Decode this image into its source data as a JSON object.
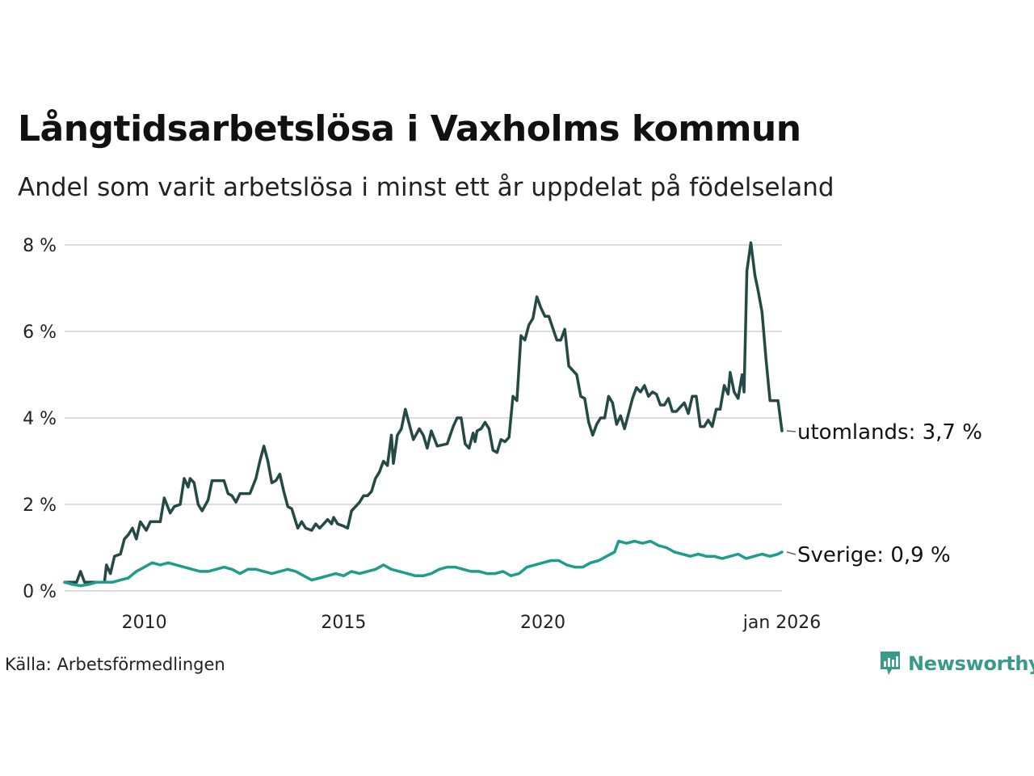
{
  "title": "Långtidsarbetslösa i Vaxholms kommun",
  "subtitle": "Andel som varit arbetslösa i minst ett år uppdelat på födelseland",
  "source": "Källa: Arbetsförmedlingen",
  "brand": "Newsworthy",
  "icons": {
    "brand": "newsworthy-logo-icon"
  },
  "colors": {
    "utomlands": "#254a45",
    "sverige": "#1e9c8c",
    "grid": "#dddddd",
    "brand": "#3a9a8a"
  },
  "chart_data": {
    "type": "line",
    "title": "Långtidsarbetslösa i Vaxholms kommun",
    "xlabel": "",
    "ylabel": "",
    "x_start": "2008-01",
    "x_end": "2026-01",
    "xlim": [
      2008.0,
      2026.0
    ],
    "ylim": [
      0,
      8
    ],
    "y_ticks": [
      0,
      2,
      4,
      6,
      8
    ],
    "y_tick_labels": [
      "0 %",
      "2 %",
      "4 %",
      "6 %",
      "8 %"
    ],
    "x_ticks": [
      2010,
      2015,
      2020,
      2026
    ],
    "x_tick_labels": [
      "2010",
      "2015",
      "2020",
      "jan 2026"
    ],
    "grid": true,
    "series": [
      {
        "name": "utomlands",
        "label": "utomlands: 3,7 %",
        "last_value": 3.7,
        "points": [
          [
            2008.0,
            0.2
          ],
          [
            2008.3,
            0.2
          ],
          [
            2008.4,
            0.45
          ],
          [
            2008.5,
            0.2
          ],
          [
            2009.0,
            0.2
          ],
          [
            2009.05,
            0.6
          ],
          [
            2009.15,
            0.4
          ],
          [
            2009.25,
            0.8
          ],
          [
            2009.4,
            0.85
          ],
          [
            2009.5,
            1.2
          ],
          [
            2009.6,
            1.3
          ],
          [
            2009.7,
            1.45
          ],
          [
            2009.8,
            1.2
          ],
          [
            2009.9,
            1.6
          ],
          [
            2010.05,
            1.4
          ],
          [
            2010.15,
            1.6
          ],
          [
            2010.4,
            1.6
          ],
          [
            2010.5,
            2.15
          ],
          [
            2010.65,
            1.8
          ],
          [
            2010.75,
            1.95
          ],
          [
            2010.9,
            2.0
          ],
          [
            2011.0,
            2.6
          ],
          [
            2011.1,
            2.4
          ],
          [
            2011.15,
            2.6
          ],
          [
            2011.25,
            2.5
          ],
          [
            2011.35,
            2.0
          ],
          [
            2011.45,
            1.85
          ],
          [
            2011.6,
            2.1
          ],
          [
            2011.7,
            2.55
          ],
          [
            2012.0,
            2.55
          ],
          [
            2012.1,
            2.25
          ],
          [
            2012.2,
            2.2
          ],
          [
            2012.3,
            2.05
          ],
          [
            2012.4,
            2.25
          ],
          [
            2012.55,
            2.25
          ],
          [
            2012.65,
            2.25
          ],
          [
            2012.8,
            2.6
          ],
          [
            2012.9,
            3.0
          ],
          [
            2013.0,
            3.35
          ],
          [
            2013.1,
            3.0
          ],
          [
            2013.2,
            2.5
          ],
          [
            2013.3,
            2.55
          ],
          [
            2013.4,
            2.7
          ],
          [
            2013.5,
            2.3
          ],
          [
            2013.6,
            1.95
          ],
          [
            2013.7,
            1.9
          ],
          [
            2013.8,
            1.6
          ],
          [
            2013.85,
            1.45
          ],
          [
            2013.95,
            1.6
          ],
          [
            2014.05,
            1.45
          ],
          [
            2014.2,
            1.4
          ],
          [
            2014.3,
            1.55
          ],
          [
            2014.4,
            1.45
          ],
          [
            2014.5,
            1.55
          ],
          [
            2014.6,
            1.65
          ],
          [
            2014.7,
            1.55
          ],
          [
            2014.75,
            1.7
          ],
          [
            2014.85,
            1.55
          ],
          [
            2015.0,
            1.5
          ],
          [
            2015.1,
            1.45
          ],
          [
            2015.2,
            1.85
          ],
          [
            2015.3,
            1.95
          ],
          [
            2015.4,
            2.05
          ],
          [
            2015.5,
            2.2
          ],
          [
            2015.6,
            2.2
          ],
          [
            2015.7,
            2.3
          ],
          [
            2015.8,
            2.6
          ],
          [
            2015.9,
            2.75
          ],
          [
            2016.0,
            3.0
          ],
          [
            2016.1,
            2.9
          ],
          [
            2016.2,
            3.6
          ],
          [
            2016.25,
            2.95
          ],
          [
            2016.35,
            3.6
          ],
          [
            2016.45,
            3.75
          ],
          [
            2016.55,
            4.2
          ],
          [
            2016.65,
            3.85
          ],
          [
            2016.75,
            3.5
          ],
          [
            2016.9,
            3.75
          ],
          [
            2017.0,
            3.6
          ],
          [
            2017.1,
            3.3
          ],
          [
            2017.2,
            3.7
          ],
          [
            2017.35,
            3.35
          ],
          [
            2017.6,
            3.4
          ],
          [
            2017.75,
            3.8
          ],
          [
            2017.85,
            4.0
          ],
          [
            2017.95,
            4.0
          ],
          [
            2018.05,
            3.4
          ],
          [
            2018.15,
            3.3
          ],
          [
            2018.25,
            3.65
          ],
          [
            2018.3,
            3.45
          ],
          [
            2018.35,
            3.7
          ],
          [
            2018.45,
            3.75
          ],
          [
            2018.55,
            3.9
          ],
          [
            2018.65,
            3.75
          ],
          [
            2018.75,
            3.25
          ],
          [
            2018.85,
            3.2
          ],
          [
            2018.95,
            3.5
          ],
          [
            2019.05,
            3.45
          ],
          [
            2019.15,
            3.55
          ],
          [
            2019.25,
            4.5
          ],
          [
            2019.35,
            4.4
          ],
          [
            2019.45,
            5.9
          ],
          [
            2019.55,
            5.8
          ],
          [
            2019.65,
            6.15
          ],
          [
            2019.75,
            6.3
          ],
          [
            2019.85,
            6.8
          ],
          [
            2019.95,
            6.55
          ],
          [
            2020.05,
            6.35
          ],
          [
            2020.15,
            6.35
          ],
          [
            2020.35,
            5.8
          ],
          [
            2020.45,
            5.8
          ],
          [
            2020.55,
            6.05
          ],
          [
            2020.65,
            5.2
          ],
          [
            2020.75,
            5.1
          ],
          [
            2020.85,
            5.0
          ],
          [
            2020.95,
            4.5
          ],
          [
            2021.05,
            4.45
          ],
          [
            2021.15,
            3.9
          ],
          [
            2021.25,
            3.6
          ],
          [
            2021.35,
            3.85
          ],
          [
            2021.45,
            4.0
          ],
          [
            2021.55,
            4.0
          ],
          [
            2021.65,
            4.5
          ],
          [
            2021.75,
            4.35
          ],
          [
            2021.85,
            3.85
          ],
          [
            2021.95,
            4.05
          ],
          [
            2022.05,
            3.75
          ],
          [
            2022.15,
            4.1
          ],
          [
            2022.25,
            4.45
          ],
          [
            2022.35,
            4.7
          ],
          [
            2022.45,
            4.6
          ],
          [
            2022.55,
            4.75
          ],
          [
            2022.65,
            4.5
          ],
          [
            2022.75,
            4.6
          ],
          [
            2022.85,
            4.55
          ],
          [
            2022.95,
            4.3
          ],
          [
            2023.05,
            4.3
          ],
          [
            2023.15,
            4.45
          ],
          [
            2023.25,
            4.15
          ],
          [
            2023.35,
            4.15
          ],
          [
            2023.45,
            4.25
          ],
          [
            2023.55,
            4.35
          ],
          [
            2023.65,
            4.1
          ],
          [
            2023.75,
            4.5
          ],
          [
            2023.85,
            4.5
          ],
          [
            2023.95,
            3.8
          ],
          [
            2024.05,
            3.8
          ],
          [
            2024.15,
            3.95
          ],
          [
            2024.25,
            3.8
          ],
          [
            2024.35,
            4.2
          ],
          [
            2024.45,
            4.2
          ],
          [
            2024.55,
            4.75
          ],
          [
            2024.65,
            4.55
          ],
          [
            2024.7,
            5.05
          ],
          [
            2024.8,
            4.6
          ],
          [
            2024.9,
            4.45
          ],
          [
            2025.0,
            5.0
          ],
          [
            2025.05,
            4.6
          ],
          [
            2025.12,
            7.4
          ],
          [
            2025.22,
            8.05
          ],
          [
            2025.32,
            7.3
          ],
          [
            2025.4,
            6.95
          ],
          [
            2025.5,
            6.45
          ],
          [
            2025.6,
            5.35
          ],
          [
            2025.7,
            4.4
          ],
          [
            2025.8,
            4.4
          ],
          [
            2025.9,
            4.4
          ],
          [
            2026.0,
            3.7
          ]
        ]
      },
      {
        "name": "Sverige",
        "label": "Sverige: 0,9 %",
        "last_value": 0.9,
        "points": [
          [
            2008.0,
            0.2
          ],
          [
            2008.2,
            0.15
          ],
          [
            2008.4,
            0.12
          ],
          [
            2008.6,
            0.15
          ],
          [
            2008.8,
            0.2
          ],
          [
            2009.0,
            0.2
          ],
          [
            2009.2,
            0.2
          ],
          [
            2009.4,
            0.25
          ],
          [
            2009.6,
            0.3
          ],
          [
            2009.8,
            0.45
          ],
          [
            2010.0,
            0.55
          ],
          [
            2010.2,
            0.65
          ],
          [
            2010.4,
            0.6
          ],
          [
            2010.6,
            0.65
          ],
          [
            2010.8,
            0.6
          ],
          [
            2011.0,
            0.55
          ],
          [
            2011.2,
            0.5
          ],
          [
            2011.4,
            0.45
          ],
          [
            2011.6,
            0.45
          ],
          [
            2011.8,
            0.5
          ],
          [
            2012.0,
            0.55
          ],
          [
            2012.2,
            0.5
          ],
          [
            2012.4,
            0.4
          ],
          [
            2012.6,
            0.5
          ],
          [
            2012.8,
            0.5
          ],
          [
            2013.0,
            0.45
          ],
          [
            2013.2,
            0.4
          ],
          [
            2013.4,
            0.45
          ],
          [
            2013.6,
            0.5
          ],
          [
            2013.8,
            0.45
          ],
          [
            2014.0,
            0.35
          ],
          [
            2014.2,
            0.25
          ],
          [
            2014.4,
            0.3
          ],
          [
            2014.6,
            0.35
          ],
          [
            2014.8,
            0.4
          ],
          [
            2015.0,
            0.35
          ],
          [
            2015.2,
            0.45
          ],
          [
            2015.4,
            0.4
          ],
          [
            2015.6,
            0.45
          ],
          [
            2015.8,
            0.5
          ],
          [
            2016.0,
            0.6
          ],
          [
            2016.2,
            0.5
          ],
          [
            2016.4,
            0.45
          ],
          [
            2016.6,
            0.4
          ],
          [
            2016.8,
            0.35
          ],
          [
            2017.0,
            0.35
          ],
          [
            2017.2,
            0.4
          ],
          [
            2017.4,
            0.5
          ],
          [
            2017.6,
            0.55
          ],
          [
            2017.8,
            0.55
          ],
          [
            2018.0,
            0.5
          ],
          [
            2018.2,
            0.45
          ],
          [
            2018.4,
            0.45
          ],
          [
            2018.6,
            0.4
          ],
          [
            2018.8,
            0.4
          ],
          [
            2019.0,
            0.45
          ],
          [
            2019.2,
            0.35
          ],
          [
            2019.4,
            0.4
          ],
          [
            2019.6,
            0.55
          ],
          [
            2019.8,
            0.6
          ],
          [
            2020.0,
            0.65
          ],
          [
            2020.2,
            0.7
          ],
          [
            2020.4,
            0.7
          ],
          [
            2020.6,
            0.6
          ],
          [
            2020.8,
            0.55
          ],
          [
            2021.0,
            0.55
          ],
          [
            2021.2,
            0.65
          ],
          [
            2021.4,
            0.7
          ],
          [
            2021.6,
            0.8
          ],
          [
            2021.8,
            0.9
          ],
          [
            2021.9,
            1.15
          ],
          [
            2022.1,
            1.1
          ],
          [
            2022.3,
            1.15
          ],
          [
            2022.5,
            1.1
          ],
          [
            2022.7,
            1.15
          ],
          [
            2022.9,
            1.05
          ],
          [
            2023.1,
            1.0
          ],
          [
            2023.3,
            0.9
          ],
          [
            2023.5,
            0.85
          ],
          [
            2023.7,
            0.8
          ],
          [
            2023.9,
            0.85
          ],
          [
            2024.1,
            0.8
          ],
          [
            2024.3,
            0.8
          ],
          [
            2024.5,
            0.75
          ],
          [
            2024.7,
            0.8
          ],
          [
            2024.9,
            0.85
          ],
          [
            2025.1,
            0.75
          ],
          [
            2025.3,
            0.8
          ],
          [
            2025.5,
            0.85
          ],
          [
            2025.7,
            0.8
          ],
          [
            2025.9,
            0.85
          ],
          [
            2026.0,
            0.9
          ]
        ]
      }
    ]
  }
}
